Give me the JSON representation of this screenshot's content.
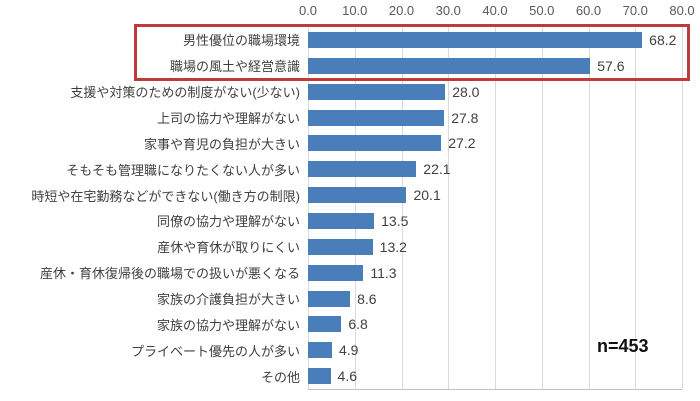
{
  "chart_data": {
    "type": "bar",
    "orientation": "horizontal",
    "title": "",
    "xlabel": "",
    "ylabel": "",
    "categories": [
      "男性優位の職場環境",
      "職場の風土や経営意識",
      "支援や対策のための制度がない(少ない)",
      "上司の協力や理解がない",
      "家事や育児の負担が大きい",
      "そもそも管理職になりたくない人が多い",
      "時短や在宅勤務などができない(働き方の制限)",
      "同僚の協力や理解がない",
      "産休や育休が取りにくい",
      "産休・育休復帰後の職場での扱いが悪くなる",
      "家族の介護負担が大きい",
      "家族の協力や理解がない",
      "プライベート優先の人が多い",
      "その他"
    ],
    "values": [
      68.2,
      57.6,
      28.0,
      27.8,
      27.2,
      22.1,
      20.1,
      13.5,
      13.2,
      11.3,
      8.6,
      6.8,
      4.9,
      4.6
    ],
    "value_labels": [
      "68.2",
      "57.6",
      "28.0",
      "27.8",
      "27.2",
      "22.1",
      "20.1",
      "13.5",
      "13.2",
      "11.3",
      "8.6",
      "6.8",
      "4.9",
      "4.6"
    ],
    "xlim": [
      0,
      80
    ],
    "x_ticks": [
      "0.0",
      "10.0",
      "20.0",
      "30.0",
      "40.0",
      "50.0",
      "60.0",
      "70.0",
      "80.0"
    ],
    "grid": true,
    "legend": false,
    "annotation": "n=453",
    "highlighted_categories": [
      "男性優位の職場環境",
      "職場の風土や経営意識"
    ],
    "bar_color": "#4A7EBB",
    "gridline_color": "#D9D9D9",
    "axis_line_color": "#BFBFBF",
    "highlight_color": "#BE3B3B",
    "tick_label_color": "#595959",
    "category_label_color": "#3F3F3F",
    "value_label_color": "#404040"
  }
}
